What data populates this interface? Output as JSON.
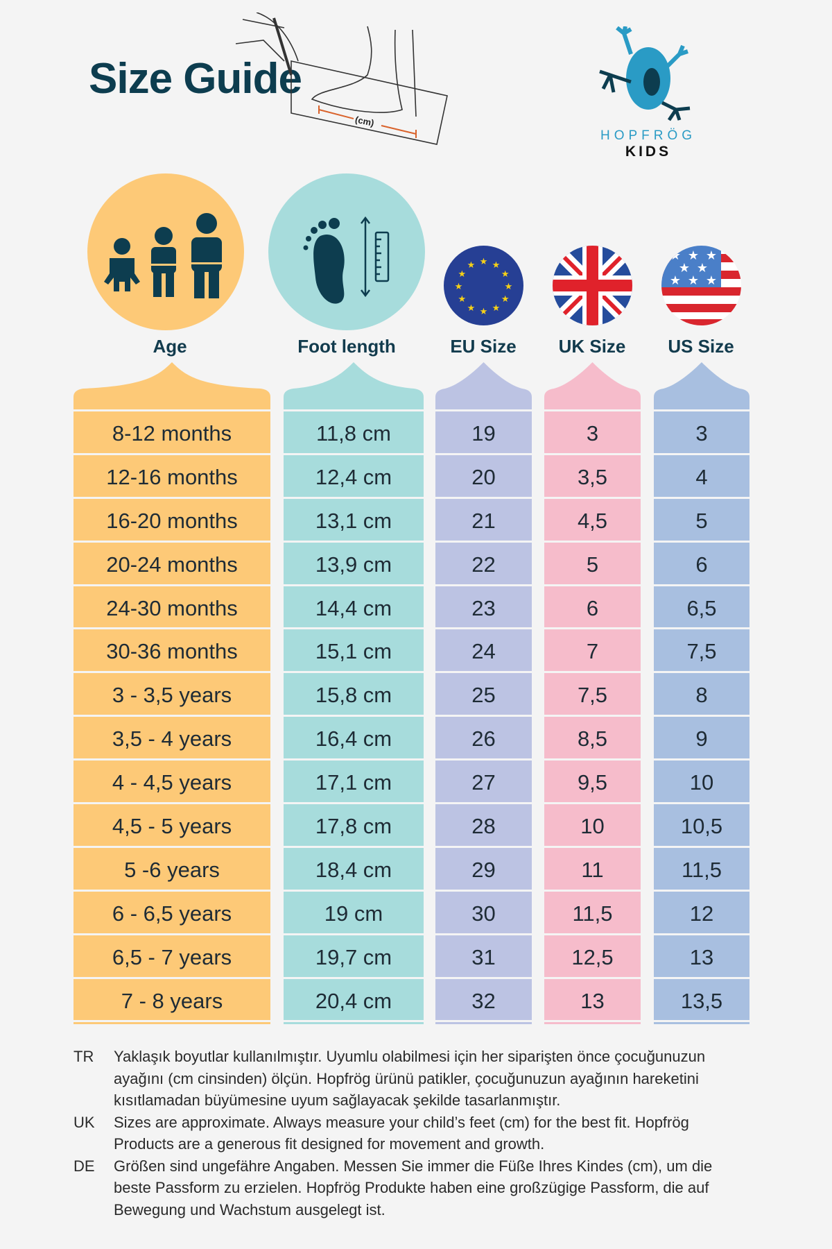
{
  "title": "Size Guide",
  "sketch_label": "(cm)",
  "logo": {
    "brand": "HOPFRÖG",
    "sub": "KIDS",
    "colors": {
      "light": "#2a9bc5",
      "dark": "#0d3d4f"
    }
  },
  "columns": [
    {
      "key": "age",
      "label": "Age",
      "icon": "children-icon",
      "color": "#fdc977",
      "values": [
        "8-12 months",
        "12-16 months",
        "16-20 months",
        "20-24 months",
        "24-30 months",
        "30-36 months",
        "3 - 3,5 years",
        "3,5 - 4 years",
        "4 - 4,5 years",
        "4,5 - 5 years",
        "5 -6 years",
        "6 - 6,5 years",
        "6,5 - 7 years",
        "7 - 8 years"
      ]
    },
    {
      "key": "foot",
      "label": "Foot length",
      "icon": "footprint-ruler-icon",
      "color": "#a7dcdc",
      "values": [
        "11,8 cm",
        "12,4 cm",
        "13,1 cm",
        "13,9 cm",
        "14,4 cm",
        "15,1 cm",
        "15,8 cm",
        "16,4 cm",
        "17,1 cm",
        "17,8 cm",
        "18,4 cm",
        "19 cm",
        "19,7 cm",
        "20,4 cm"
      ]
    },
    {
      "key": "eu",
      "label": "EU Size",
      "icon": "eu-flag-icon",
      "color": "#bcc3e3",
      "values": [
        "19",
        "20",
        "21",
        "22",
        "23",
        "24",
        "25",
        "26",
        "27",
        "28",
        "29",
        "30",
        "31",
        "32"
      ]
    },
    {
      "key": "uk",
      "label": "UK Size",
      "icon": "uk-flag-icon",
      "color": "#f6bccb",
      "values": [
        "3",
        "3,5",
        "4,5",
        "5",
        "6",
        "7",
        "7,5",
        "8,5",
        "9,5",
        "10",
        "11",
        "11,5",
        "12,5",
        "13"
      ]
    },
    {
      "key": "us",
      "label": "US Size",
      "icon": "us-flag-icon",
      "color": "#a8bfe0",
      "values": [
        "3",
        "4",
        "5",
        "6",
        "6,5",
        "7,5",
        "8",
        "9",
        "10",
        "10,5",
        "11,5",
        "12",
        "13",
        "13,5"
      ]
    }
  ],
  "notes": [
    {
      "code": "TR",
      "text": "Yaklaşık boyutlar kullanılmıştır. Uyumlu olabilmesi için her siparişten önce çocuğunuzun ayağını (cm cinsinden) ölçün. Hopfrög ürünü patikler, çocuğunuzun ayağının hareketini kısıtlamadan büyümesine uyum sağlayacak şekilde tasarlanmıştır."
    },
    {
      "code": "UK",
      "text": "Sizes are approximate. Always measure your child’s feet (cm) for the best fit. Hopfrög Products are a generous fit designed for movement and growth."
    },
    {
      "code": "DE",
      "text": "Größen sind ungefähre Angaben. Messen Sie immer die Füße Ihres Kindes (cm), um die beste Passform zu erzielen. Hopfrög Produkte haben eine großzügige Passform, die auf Bewegung und Wachstum ausgelegt ist."
    }
  ]
}
